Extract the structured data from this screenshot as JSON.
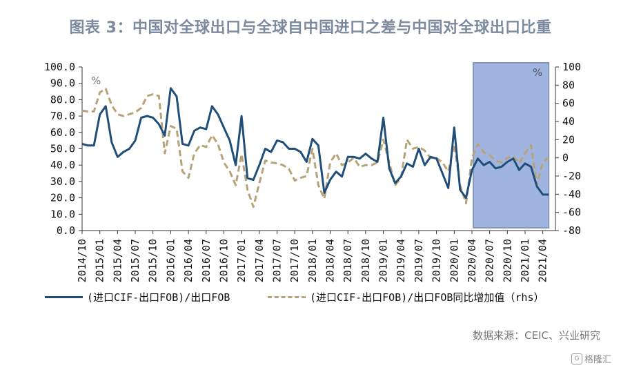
{
  "title": "图表 3：中国对全球出口与全球自中国进口之差与中国对全球出口比重",
  "source": "数据来源：CEIC、兴业研究",
  "watermark": "格隆汇",
  "chart_data": {
    "type": "line",
    "title": "图表 3：中国对全球出口与全球自中国进口之差与中国对全球出口比重",
    "x_start": "2014/10",
    "x_frequency": "monthly",
    "x_tick_labels": [
      "2014/10",
      "2015/01",
      "2015/04",
      "2015/07",
      "2015/10",
      "2016/01",
      "2016/04",
      "2016/07",
      "2016/10",
      "2017/01",
      "2017/04",
      "2017/07",
      "2017/10",
      "2018/01",
      "2018/04",
      "2018/07",
      "2018/10",
      "2019/01",
      "2019/04",
      "2019/07",
      "2019/10",
      "2020/01",
      "2020/04",
      "2020/07",
      "2020/10",
      "2021/01",
      "2021/04"
    ],
    "y_left": {
      "label": "%",
      "range": [
        0,
        100
      ],
      "ticks": [
        "100.0",
        "90.0",
        "80.0",
        "70.0",
        "60.0",
        "50.0",
        "40.0",
        "30.0",
        "20.0",
        "10.0",
        "0.0"
      ]
    },
    "y_right": {
      "label": "%",
      "range": [
        -80,
        100
      ],
      "ticks": [
        "100",
        "80",
        "60",
        "40",
        "20",
        "0",
        "-20",
        "-40",
        "-60",
        "-80"
      ]
    },
    "shaded_range": [
      "2020/04",
      "2021/05"
    ],
    "shade_color": "#9fb5e0",
    "legend_position": "bottom",
    "series": [
      {
        "name": "(进口CIF-出口FOB)/出口FOB",
        "axis": "left",
        "style": "solid",
        "color": "#1f4e79",
        "values": [
          53,
          52,
          52,
          71,
          76,
          54,
          45,
          48,
          50,
          55,
          69,
          70,
          69,
          65,
          58,
          87,
          82,
          53,
          52,
          61,
          63,
          62,
          76,
          71,
          63,
          55,
          40,
          70,
          32,
          31,
          40,
          50,
          48,
          55,
          54,
          50,
          50,
          48,
          42,
          56,
          52,
          23,
          31,
          36,
          33,
          45,
          45,
          44,
          47,
          44,
          42,
          69,
          38,
          29,
          33,
          41,
          39,
          50,
          40,
          45,
          44,
          35,
          26,
          63,
          25,
          20,
          37,
          44,
          40,
          42,
          38,
          39,
          42,
          44,
          37,
          41,
          39,
          27,
          22,
          22
        ]
      },
      {
        "name": "(进口CIF-出口FOB)/出口FOB同比增加值（rhs）",
        "axis": "right",
        "style": "dashed",
        "color": "#b8a27a",
        "values": [
          52,
          51,
          51,
          72,
          76,
          58,
          48,
          46,
          48,
          50,
          55,
          68,
          70,
          68,
          5,
          35,
          32,
          -15,
          -22,
          5,
          14,
          12,
          25,
          15,
          -5,
          -15,
          -30,
          4,
          -35,
          -54,
          -28,
          -3,
          -5,
          -6,
          -8,
          -12,
          -25,
          -22,
          -20,
          10,
          -30,
          -45,
          -5,
          5,
          -8,
          -5,
          0,
          -10,
          -8,
          -8,
          -5,
          20,
          -5,
          -30,
          -22,
          20,
          10,
          12,
          8,
          0,
          0,
          -5,
          -15,
          15,
          -30,
          -50,
          0,
          15,
          6,
          3,
          -3,
          -5,
          0,
          2,
          -6,
          5,
          14,
          -30,
          -5,
          0
        ]
      }
    ]
  }
}
